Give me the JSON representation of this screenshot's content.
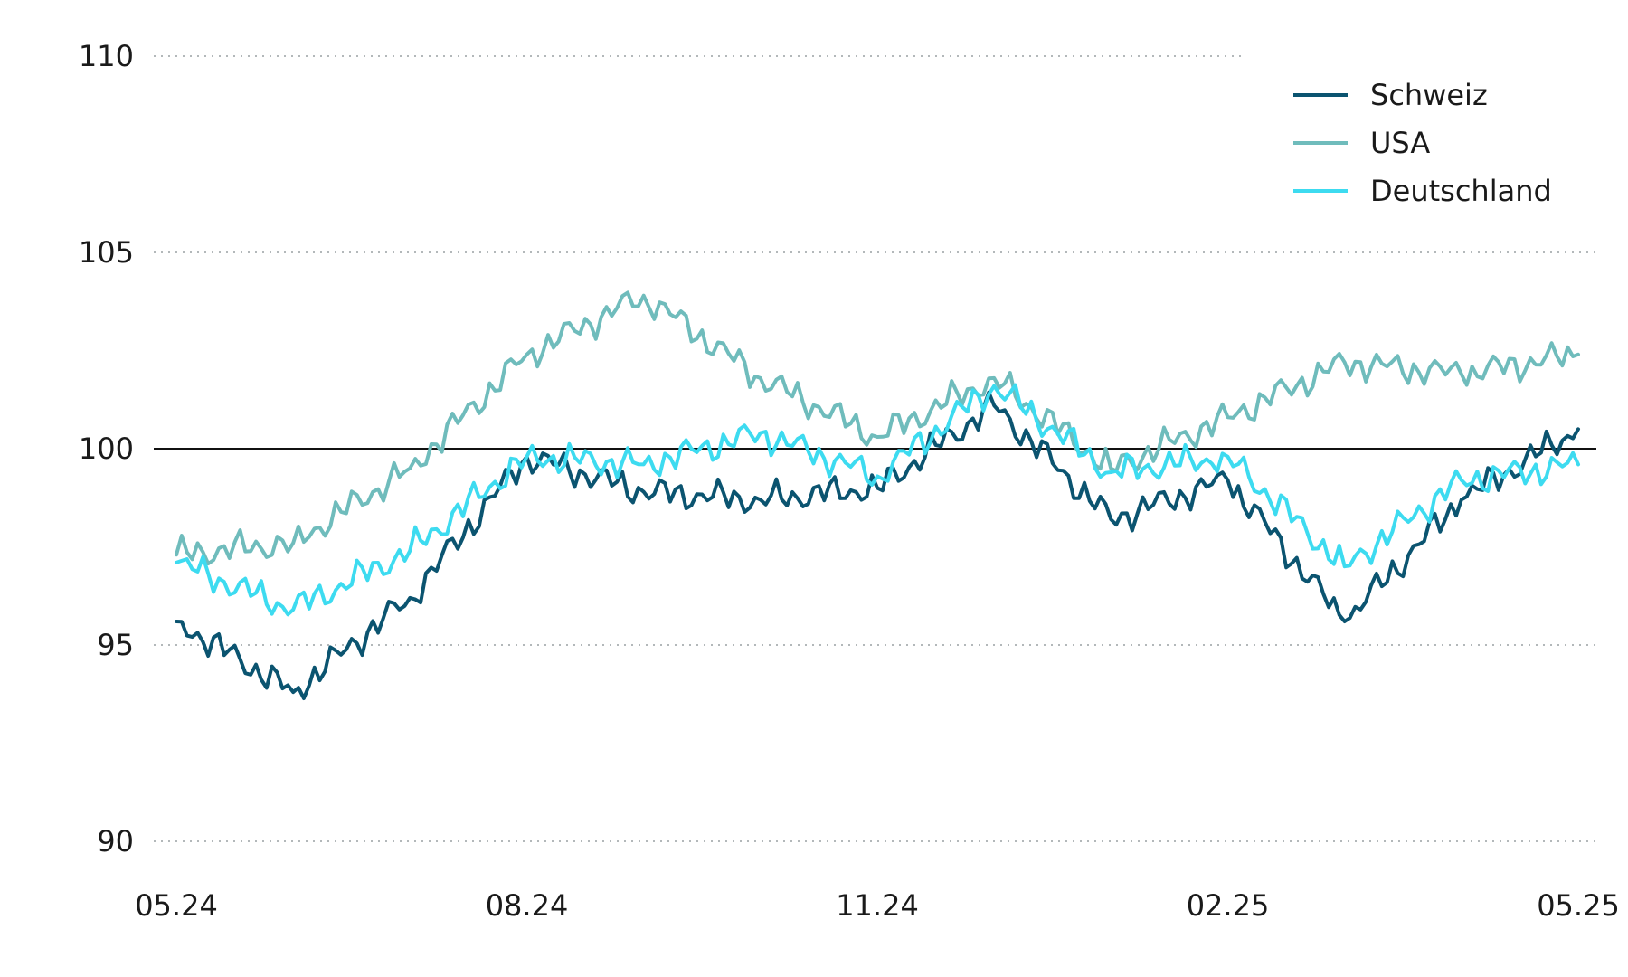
{
  "chart_data": {
    "type": "line",
    "title": "",
    "xlabel": "",
    "ylabel": "",
    "ylim": [
      90,
      110
    ],
    "y_ticks": [
      90,
      95,
      100,
      105,
      110
    ],
    "x_ticks": [
      "05.24",
      "08.24",
      "11.24",
      "02.25",
      "05.25"
    ],
    "reference_line": 100,
    "grid": "horizontal dotted",
    "legend_position": "top-right",
    "x": [
      "05.24",
      "06.24",
      "07.24",
      "08.24",
      "09.24",
      "10.24",
      "11.24",
      "12.24",
      "01.25",
      "02.25",
      "03.25",
      "04.25",
      "05.25"
    ],
    "series": [
      {
        "name": "Schweiz",
        "color": "#0b5470",
        "values": [
          95.6,
          93.8,
          96.2,
          99.8,
          98.9,
          98.7,
          99.0,
          101.1,
          98.2,
          99.2,
          95.6,
          98.7,
          100.5
        ]
      },
      {
        "name": "USA",
        "color": "#6fbcbc",
        "values": [
          97.3,
          97.6,
          99.5,
          102.4,
          103.9,
          101.8,
          100.3,
          101.8,
          99.5,
          100.8,
          102.2,
          101.9,
          102.4
        ]
      },
      {
        "name": "Deutschland",
        "color": "#3ddbf0",
        "values": [
          97.1,
          95.9,
          97.4,
          99.8,
          99.6,
          100.4,
          99.3,
          101.6,
          99.4,
          99.8,
          97.0,
          99.2,
          99.6
        ]
      }
    ]
  }
}
